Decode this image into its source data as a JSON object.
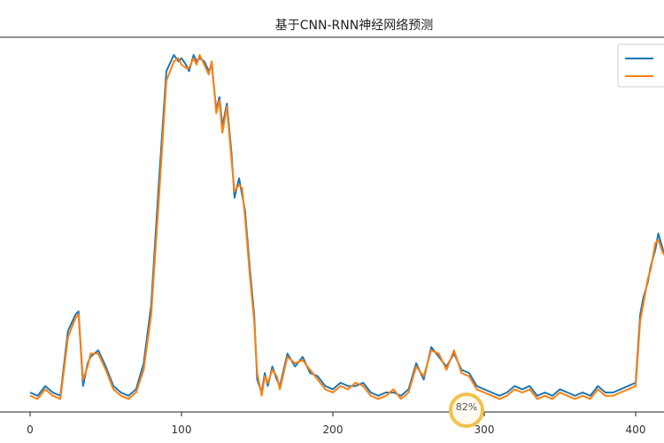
{
  "colors": {
    "series_actual": "#1f77b4",
    "series_predicted": "#ff7f0e",
    "axis": "#222222",
    "badge_ring": "#f2c24a"
  },
  "overlay": {
    "badge_value": "82%"
  },
  "chart_data": {
    "type": "line",
    "title": "基于CNN-RNN神经网络预测",
    "xlabel": "",
    "ylabel": "",
    "xlim": [
      -5,
      420
    ],
    "ylim": [
      0,
      1.1
    ],
    "x_ticks": [
      0,
      100,
      200,
      300,
      400
    ],
    "grid": false,
    "legend_placement": "top-right",
    "series": [
      {
        "color": "#1f77b4",
        "x": [
          0,
          5,
          10,
          15,
          20,
          25,
          30,
          32,
          35,
          38,
          40,
          45,
          50,
          55,
          60,
          65,
          70,
          75,
          80,
          85,
          90,
          95,
          98,
          100,
          103,
          105,
          108,
          110,
          112,
          115,
          118,
          120,
          123,
          125,
          127,
          130,
          133,
          135,
          138,
          140,
          142,
          145,
          148,
          150,
          153,
          155,
          157,
          160,
          163,
          165,
          170,
          175,
          180,
          185,
          190,
          195,
          200,
          205,
          210,
          215,
          220,
          225,
          230,
          235,
          240,
          245,
          250,
          255,
          260,
          265,
          270,
          275,
          280,
          285,
          290,
          295,
          300,
          305,
          310,
          315,
          320,
          325,
          330,
          335,
          340,
          345,
          350,
          355,
          360,
          365,
          370,
          375,
          380,
          385,
          390,
          395,
          400,
          403,
          405,
          408,
          410,
          413,
          415,
          418,
          420
        ],
        "y": [
          0.06,
          0.05,
          0.08,
          0.06,
          0.05,
          0.25,
          0.3,
          0.31,
          0.08,
          0.15,
          0.17,
          0.19,
          0.14,
          0.08,
          0.06,
          0.05,
          0.07,
          0.15,
          0.33,
          0.7,
          1.05,
          1.1,
          1.08,
          1.09,
          1.07,
          1.05,
          1.1,
          1.08,
          1.09,
          1.08,
          1.05,
          1.07,
          0.93,
          0.97,
          0.88,
          0.95,
          0.8,
          0.66,
          0.72,
          0.67,
          0.62,
          0.45,
          0.3,
          0.1,
          0.06,
          0.12,
          0.08,
          0.14,
          0.1,
          0.08,
          0.18,
          0.14,
          0.17,
          0.12,
          0.11,
          0.08,
          0.07,
          0.09,
          0.08,
          0.08,
          0.09,
          0.06,
          0.05,
          0.06,
          0.06,
          0.05,
          0.07,
          0.15,
          0.1,
          0.2,
          0.17,
          0.14,
          0.18,
          0.13,
          0.12,
          0.08,
          0.07,
          0.06,
          0.05,
          0.06,
          0.08,
          0.07,
          0.08,
          0.05,
          0.06,
          0.05,
          0.07,
          0.06,
          0.05,
          0.06,
          0.05,
          0.08,
          0.06,
          0.06,
          0.07,
          0.08,
          0.09,
          0.3,
          0.35,
          0.4,
          0.45,
          0.5,
          0.55,
          0.5,
          0.47
        ]
      },
      {
        "color": "#ff7f0e",
        "x": [
          0,
          5,
          10,
          15,
          20,
          25,
          30,
          32,
          35,
          38,
          40,
          45,
          50,
          55,
          60,
          65,
          70,
          75,
          80,
          85,
          90,
          95,
          98,
          100,
          103,
          105,
          108,
          110,
          112,
          115,
          118,
          120,
          123,
          125,
          127,
          130,
          133,
          135,
          138,
          140,
          142,
          145,
          148,
          150,
          153,
          155,
          157,
          160,
          163,
          165,
          170,
          175,
          180,
          185,
          190,
          195,
          200,
          205,
          210,
          215,
          220,
          225,
          230,
          235,
          240,
          245,
          250,
          255,
          260,
          265,
          270,
          275,
          280,
          285,
          290,
          295,
          300,
          305,
          310,
          315,
          320,
          325,
          330,
          335,
          340,
          345,
          350,
          355,
          360,
          365,
          370,
          375,
          380,
          385,
          390,
          395,
          400,
          403,
          405,
          408,
          410,
          413,
          415,
          418,
          420
        ],
        "y": [
          0.05,
          0.04,
          0.07,
          0.05,
          0.04,
          0.23,
          0.29,
          0.3,
          0.1,
          0.14,
          0.18,
          0.18,
          0.13,
          0.07,
          0.05,
          0.04,
          0.06,
          0.13,
          0.3,
          0.65,
          1.02,
          1.08,
          1.09,
          1.07,
          1.06,
          1.06,
          1.09,
          1.07,
          1.1,
          1.07,
          1.04,
          1.08,
          0.92,
          0.96,
          0.86,
          0.94,
          0.78,
          0.68,
          0.7,
          0.69,
          0.6,
          0.43,
          0.28,
          0.12,
          0.05,
          0.11,
          0.09,
          0.13,
          0.11,
          0.07,
          0.17,
          0.15,
          0.16,
          0.13,
          0.1,
          0.07,
          0.06,
          0.08,
          0.07,
          0.09,
          0.08,
          0.05,
          0.04,
          0.05,
          0.07,
          0.04,
          0.06,
          0.14,
          0.11,
          0.19,
          0.18,
          0.13,
          0.19,
          0.12,
          0.11,
          0.07,
          0.06,
          0.05,
          0.04,
          0.05,
          0.07,
          0.06,
          0.07,
          0.04,
          0.05,
          0.04,
          0.06,
          0.05,
          0.04,
          0.05,
          0.04,
          0.07,
          0.05,
          0.05,
          0.06,
          0.07,
          0.08,
          0.28,
          0.33,
          0.41,
          0.44,
          0.52,
          0.53,
          0.49,
          0.48
        ]
      }
    ]
  }
}
